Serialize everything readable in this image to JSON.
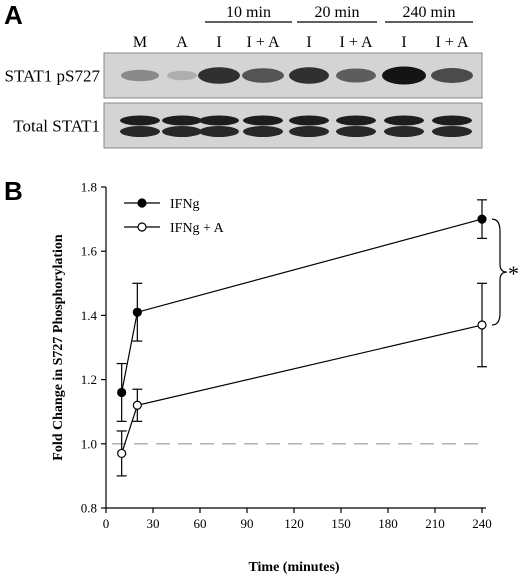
{
  "panel_a": {
    "letter": "A",
    "time_groups": [
      "10 min",
      "20 min",
      "240 min"
    ],
    "lanes": [
      "M",
      "A",
      "I",
      "I + A",
      "I",
      "I + A",
      "I",
      "I + A"
    ],
    "blots": [
      {
        "label": "STAT1 pS727",
        "band_intensity": [
          0.35,
          0.15,
          0.85,
          0.65,
          0.85,
          0.6,
          1.0,
          0.7
        ]
      },
      {
        "label": "Total STAT1",
        "band_intensity": [
          0.9,
          0.9,
          0.9,
          0.9,
          0.9,
          0.9,
          0.9,
          0.9
        ]
      }
    ]
  },
  "panel_b": {
    "letter": "B"
  },
  "chart_data": {
    "type": "line",
    "xlabel": "Time (minutes)",
    "ylabel": "Fold Change in S727 Phosphorylation",
    "xlim": [
      0,
      240
    ],
    "ylim": [
      0.8,
      1.8
    ],
    "xticks": [
      "0",
      "30",
      "60",
      "90",
      "120",
      "150",
      "180",
      "210",
      "240"
    ],
    "yticks": [
      "0.8",
      "1.0",
      "1.2",
      "1.4",
      "1.6",
      "1.8"
    ],
    "reference_line": 1.0,
    "legend_position": "top-left",
    "significance_mark": "*",
    "series": [
      {
        "name": "IFNg",
        "marker": "filled-circle",
        "x": [
          10,
          20,
          240
        ],
        "y": [
          1.16,
          1.41,
          1.7
        ],
        "err": [
          0.09,
          0.09,
          0.06
        ]
      },
      {
        "name": "IFNg + A",
        "marker": "open-circle",
        "x": [
          10,
          20,
          240
        ],
        "y": [
          0.97,
          1.12,
          1.37
        ],
        "err": [
          0.07,
          0.05,
          0.13
        ]
      }
    ]
  }
}
